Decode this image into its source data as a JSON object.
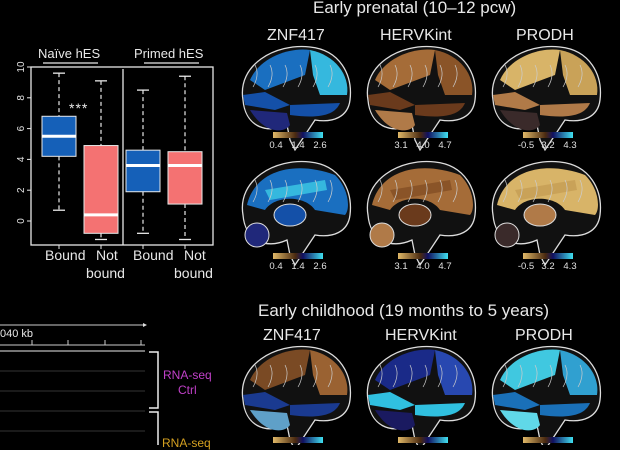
{
  "chart_data": {
    "type": "box",
    "groups": [
      "Naïve hES",
      "Primed hES"
    ],
    "categories": [
      "Bound",
      "Not bound"
    ],
    "ylim": [
      -1.3,
      10
    ],
    "yticks": [
      0,
      2,
      4,
      6,
      8,
      10
    ],
    "significance": "***",
    "boxes": [
      {
        "group": "Naïve hES",
        "category": "Bound",
        "min": 0.7,
        "q1": 4.2,
        "median": 5.5,
        "q3": 6.8,
        "max": 9.6,
        "color": "#1560b8"
      },
      {
        "group": "Naïve hES",
        "category": "Not bound",
        "min": -1.2,
        "q1": -0.8,
        "median": 0.4,
        "q3": 4.9,
        "max": 9.1,
        "color": "#f47272"
      },
      {
        "group": "Primed hES",
        "category": "Bound",
        "min": -0.8,
        "q1": 1.9,
        "median": 3.6,
        "q3": 4.6,
        "max": 8.5,
        "color": "#1560b8"
      },
      {
        "group": "Primed hES",
        "category": "Not bound",
        "min": -1.2,
        "q1": 1.1,
        "median": 3.6,
        "q3": 4.5,
        "max": 9.4,
        "color": "#f47272"
      }
    ],
    "xlabels": [
      [
        "Bound",
        ""
      ],
      [
        "Not",
        "bound"
      ],
      [
        "Bound",
        ""
      ],
      [
        "Not",
        "bound"
      ]
    ]
  },
  "genome_track": {
    "scale_label": "040 kb",
    "tracks": [
      {
        "label_line1": "RNA-seq",
        "label_line2": "Ctrl",
        "color": "#c040c8"
      },
      {
        "label_line1": "RNA-seq",
        "label_line2": "",
        "color": "#d4a020"
      }
    ]
  },
  "brain_panels": [
    {
      "title": "Early prenatal (10–12 pcw)",
      "genes": [
        {
          "name": "ZNF417",
          "colorbar_ticks": [
            "0.4",
            "1.4",
            "2.6"
          ],
          "palette": [
            "#1a6fc0",
            "#35b8de",
            "#1450a8",
            "#20287a"
          ]
        },
        {
          "name": "HERVKint",
          "colorbar_ticks": [
            "3.1",
            "4.0",
            "4.7"
          ],
          "palette": [
            "#a56c38",
            "#8a5428",
            "#6a3a1c",
            "#b07a48"
          ]
        },
        {
          "name": "PRODH",
          "colorbar_ticks": [
            "-0.5",
            "3.2",
            "4.3"
          ],
          "palette": [
            "#d8b468",
            "#c9a258",
            "#b07a48",
            "#3a2a2a"
          ]
        }
      ]
    },
    {
      "title": "Early childhood (19 months to 5 years)",
      "genes": [
        {
          "name": "ZNF417",
          "palette": [
            "#7a4a24",
            "#9a6232",
            "#1a3a90",
            "#5fa0c8"
          ]
        },
        {
          "name": "HERVKint",
          "palette": [
            "#1a2a88",
            "#2848b0",
            "#30c0e0",
            "#1a1a60"
          ]
        },
        {
          "name": "PRODH",
          "palette": [
            "#40c8e0",
            "#30a0d0",
            "#1a70b8",
            "#60d8e8"
          ]
        }
      ]
    }
  ]
}
